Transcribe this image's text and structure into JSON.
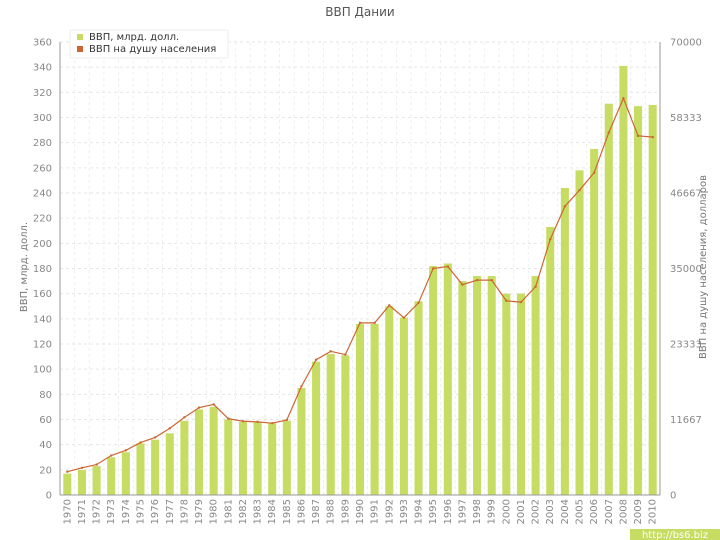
{
  "chart_data": {
    "type": "bar",
    "title": "ВВП Дании",
    "categories": [
      "1970",
      "1971",
      "1972",
      "1973",
      "1974",
      "1975",
      "1976",
      "1977",
      "1978",
      "1979",
      "1980",
      "1981",
      "1982",
      "1983",
      "1984",
      "1985",
      "1986",
      "1987",
      "1988",
      "1989",
      "1990",
      "1991",
      "1992",
      "1993",
      "1994",
      "1995",
      "1996",
      "1997",
      "1998",
      "1999",
      "2000",
      "2001",
      "2002",
      "2003",
      "2004",
      "2005",
      "2006",
      "2007",
      "2008",
      "2009",
      "2010"
    ],
    "series": [
      {
        "name": "ВВП, млрд. долл.",
        "kind": "bar",
        "axis": "left",
        "color": "#c6dc63",
        "values": [
          17,
          20,
          23,
          30,
          34,
          41,
          44,
          49,
          59,
          68,
          70,
          60,
          58,
          58,
          57,
          59,
          85,
          106,
          112,
          111,
          136,
          136,
          150,
          141,
          154,
          182,
          184,
          170,
          174,
          174,
          160,
          160,
          174,
          213,
          244,
          258,
          275,
          311,
          341,
          309,
          310
        ]
      },
      {
        "name": "ВВП на душу населения",
        "kind": "line",
        "axis": "right",
        "color": "#cc6633",
        "values": [
          3600,
          4200,
          4700,
          6100,
          6900,
          8100,
          8900,
          10300,
          12000,
          13500,
          14000,
          11800,
          11400,
          11300,
          11100,
          11600,
          16800,
          20900,
          22200,
          21700,
          26600,
          26600,
          29300,
          27400,
          29700,
          35000,
          35300,
          32500,
          33200,
          33200,
          30000,
          29800,
          32200,
          39500,
          44600,
          47100,
          49800,
          56000,
          61300,
          55500,
          55300
        ]
      }
    ],
    "xlabel": "",
    "ylabel": "ВВП, млрд. долл.",
    "ylabel_right": "ВВП на душу населения, долларов",
    "ylim": [
      0,
      360
    ],
    "ylim_right": [
      0,
      70000
    ],
    "yticks": [
      "0",
      "20",
      "40",
      "60",
      "80",
      "100",
      "120",
      "140",
      "160",
      "180",
      "200",
      "220",
      "240",
      "260",
      "280",
      "300",
      "320",
      "340",
      "360"
    ],
    "yticks_right": [
      "0",
      "11667",
      "23333",
      "35000",
      "46667",
      "58333",
      "70000"
    ],
    "grid": true,
    "legend_position": "top-left"
  },
  "watermark": "http://bs6.biz"
}
